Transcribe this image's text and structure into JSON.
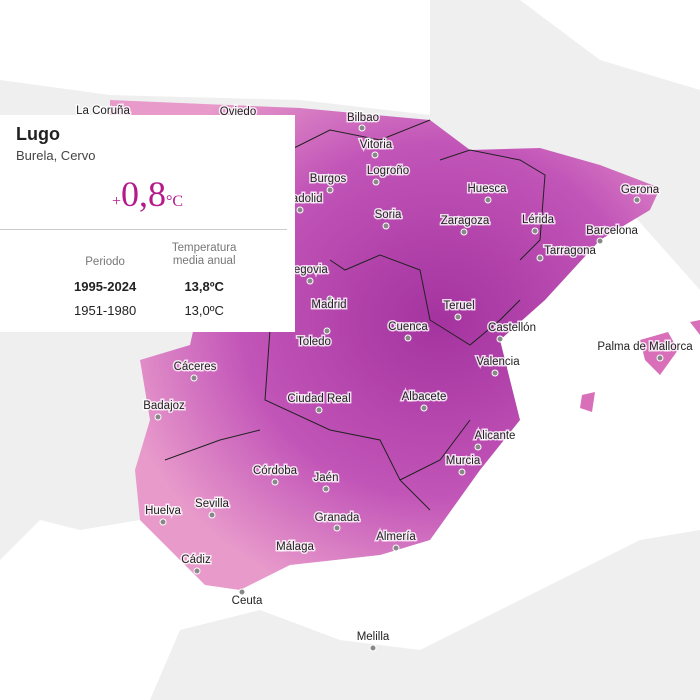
{
  "tooltip": {
    "title": "Lugo",
    "subtitle": "Burela, Cervo",
    "change": {
      "sign": "+",
      "value": "0,8",
      "unit": "°C"
    },
    "table": {
      "headers": [
        "Periodo",
        "Temperatura media anual"
      ],
      "rows": [
        [
          "1995-2024",
          "13,8ºC"
        ],
        [
          "1951-1980",
          "13,0ºC"
        ]
      ]
    }
  },
  "cities": [
    "La Coruña",
    "Oviedo",
    "Bilbao",
    "Vitoria",
    "Logroño",
    "Burgos",
    "Huesca",
    "Gerona",
    "Soria",
    "Zaragoza",
    "Lérida",
    "Barcelona",
    "Tarragona",
    "Valladolid",
    "Segovia",
    "Madrid",
    "Teruel",
    "Toledo",
    "Cuenca",
    "Castellón",
    "Palma de Mallorca",
    "Cáceres",
    "Valencia",
    "Badajoz",
    "Ciudad Real",
    "Albacete",
    "Alicante",
    "Murcia",
    "Córdoba",
    "Jaén",
    "Huelva",
    "Sevilla",
    "Granada",
    "Almería",
    "Málaga",
    "Cádiz",
    "Ceuta",
    "Melilla"
  ]
}
